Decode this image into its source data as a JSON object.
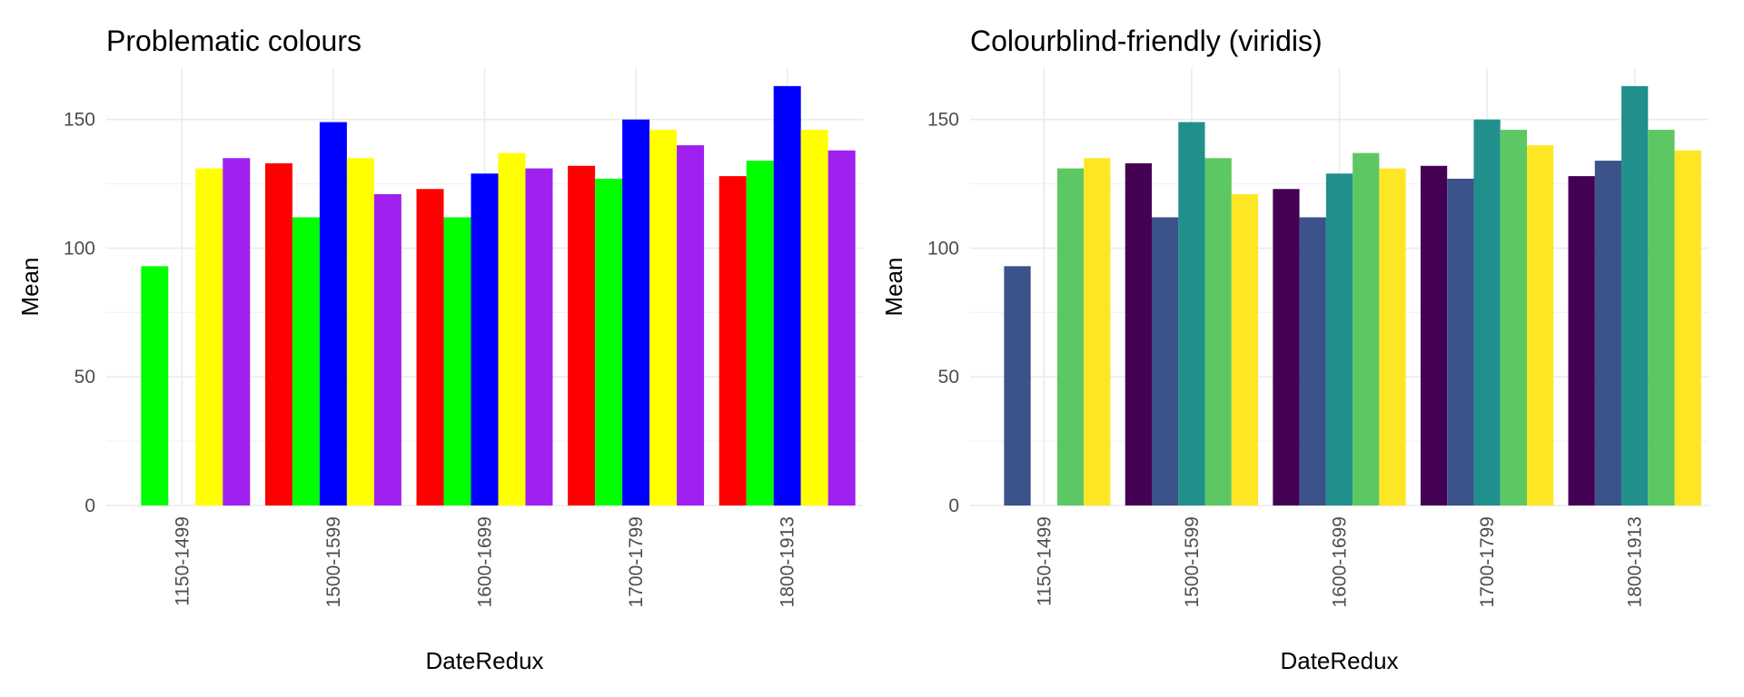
{
  "chart_data": [
    {
      "type": "bar",
      "title": "Problematic colours",
      "xlabel": "DateRedux",
      "ylabel": "Mean",
      "ylim": [
        0,
        170
      ],
      "yticks": [
        0,
        50,
        100,
        150
      ],
      "grid": true,
      "categories": [
        "1150-1499",
        "1500-1599",
        "1600-1699",
        "1700-1799",
        "1800-1913"
      ],
      "series": [
        {
          "color": "#FF0000",
          "values": [
            null,
            133,
            123,
            132,
            128
          ]
        },
        {
          "color": "#00FF00",
          "values": [
            93,
            112,
            112,
            127,
            134
          ]
        },
        {
          "color": "#0000FF",
          "values": [
            null,
            149,
            129,
            150,
            163
          ]
        },
        {
          "color": "#FFFF00",
          "values": [
            131,
            135,
            137,
            146,
            146
          ]
        },
        {
          "color": "#A020F0",
          "values": [
            135,
            121,
            131,
            140,
            138
          ]
        }
      ]
    },
    {
      "type": "bar",
      "title": "Colourblind-friendly (viridis)",
      "xlabel": "DateRedux",
      "ylabel": "Mean",
      "ylim": [
        0,
        170
      ],
      "yticks": [
        0,
        50,
        100,
        150
      ],
      "grid": true,
      "categories": [
        "1150-1499",
        "1500-1599",
        "1600-1699",
        "1700-1799",
        "1800-1913"
      ],
      "series": [
        {
          "color": "#440154",
          "values": [
            null,
            133,
            123,
            132,
            128
          ]
        },
        {
          "color": "#3B528B",
          "values": [
            93,
            112,
            112,
            127,
            134
          ]
        },
        {
          "color": "#21908C",
          "values": [
            null,
            149,
            129,
            150,
            163
          ]
        },
        {
          "color": "#5DC863",
          "values": [
            131,
            135,
            137,
            146,
            146
          ]
        },
        {
          "color": "#FDE725",
          "values": [
            135,
            121,
            131,
            140,
            138
          ]
        }
      ]
    }
  ]
}
